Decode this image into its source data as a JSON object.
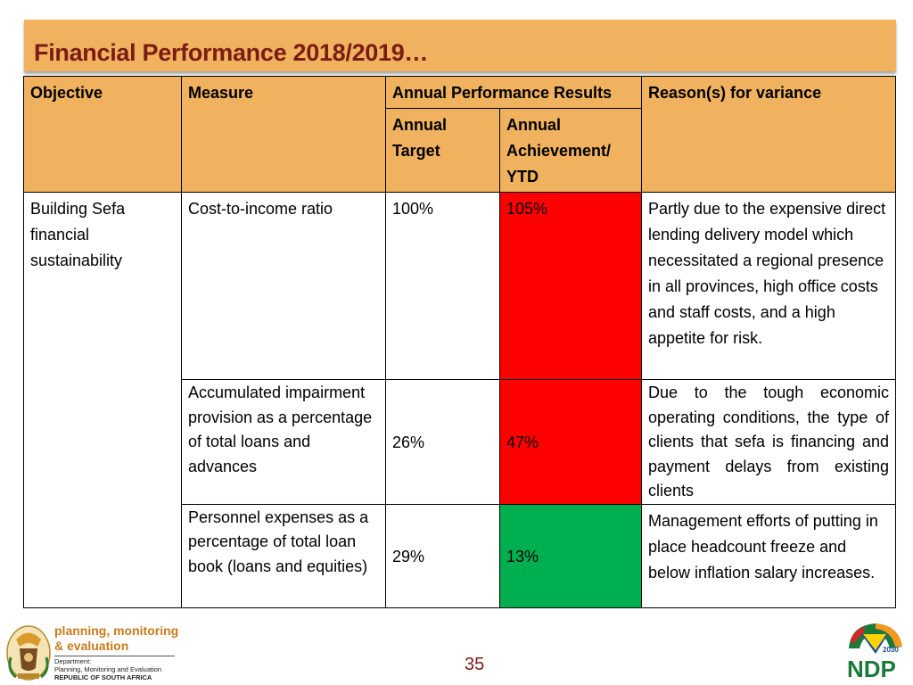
{
  "title": "Financial Performance 2018/2019…",
  "table": {
    "headers": {
      "objective": "Objective",
      "measure": "Measure",
      "results": "Annual Performance Results",
      "reasons": "Reason(s) for variance",
      "target": "Annual Target",
      "achievement": "Annual Achievement/ YTD"
    },
    "objective": "Building Sefa financial sustainability",
    "rows": [
      {
        "measure": "Cost-to-income ratio",
        "target": "100%",
        "achievement": "105%",
        "status_color": "#fe0000",
        "reason": "Partly due to the expensive direct lending delivery model which necessitated a regional presence in all provinces, high office costs and staff costs, and a high appetite for risk."
      },
      {
        "measure": "Accumulated impairment provision as a percentage of total loans and advances",
        "target": "26%",
        "achievement": "47%",
        "status_color": "#fe0000",
        "reason": "Due to the tough economic operating conditions, the type of clients that sefa is financing and payment delays from existing clients"
      },
      {
        "measure": "Personnel expenses as a percentage of total loan book (loans and equities)",
        "target": "29%",
        "achievement": "13%",
        "status_color": "#00b050",
        "reason": "Management efforts of putting in place headcount freeze and below inflation salary increases."
      }
    ]
  },
  "footer": {
    "org_line1": "planning, monitoring",
    "org_line2": "& evaluation",
    "dept_line1": "Department:",
    "dept_line2": "Planning, Monitoring and Evaluation",
    "dept_line3": "REPUBLIC OF SOUTH AFRICA",
    "page_number": "35",
    "ndp_label": "NDP",
    "ndp_year": "2030"
  },
  "colors": {
    "header_fill": "#f0b25e",
    "title_color": "#7a1c14",
    "red_status": "#fe0000",
    "green_status": "#00b050"
  }
}
